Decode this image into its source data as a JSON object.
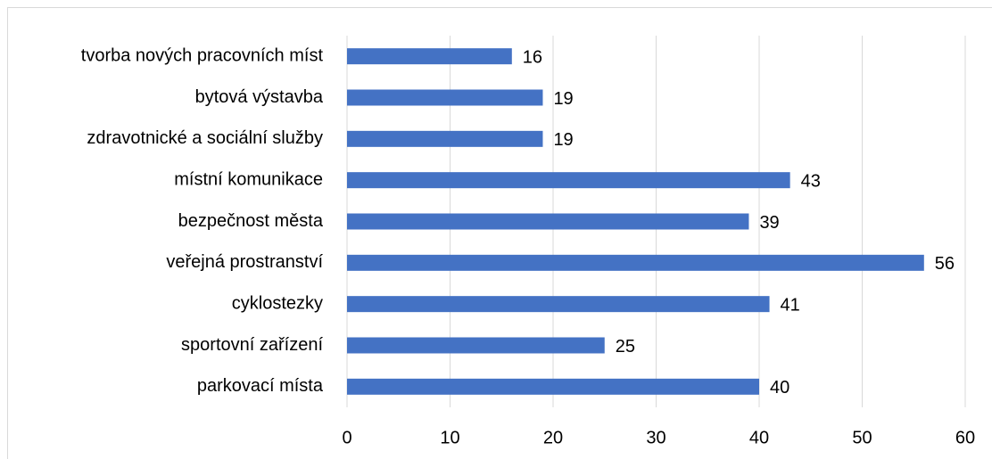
{
  "chart_data": {
    "type": "bar",
    "orientation": "horizontal",
    "categories": [
      "tvorba nových pracovních míst",
      "bytová výstavba",
      "zdravotnické a sociální služby",
      "místní komunikace",
      "bezpečnost města",
      "veřejná prostranství",
      "cyklostezky",
      "sportovní zařízení",
      "parkovací místa"
    ],
    "values": [
      16,
      19,
      19,
      43,
      39,
      56,
      41,
      25,
      40
    ],
    "color": "#4472c4",
    "xlim": [
      0,
      60
    ],
    "xticks": [
      0,
      10,
      20,
      30,
      40,
      50,
      60
    ],
    "grid": true
  }
}
